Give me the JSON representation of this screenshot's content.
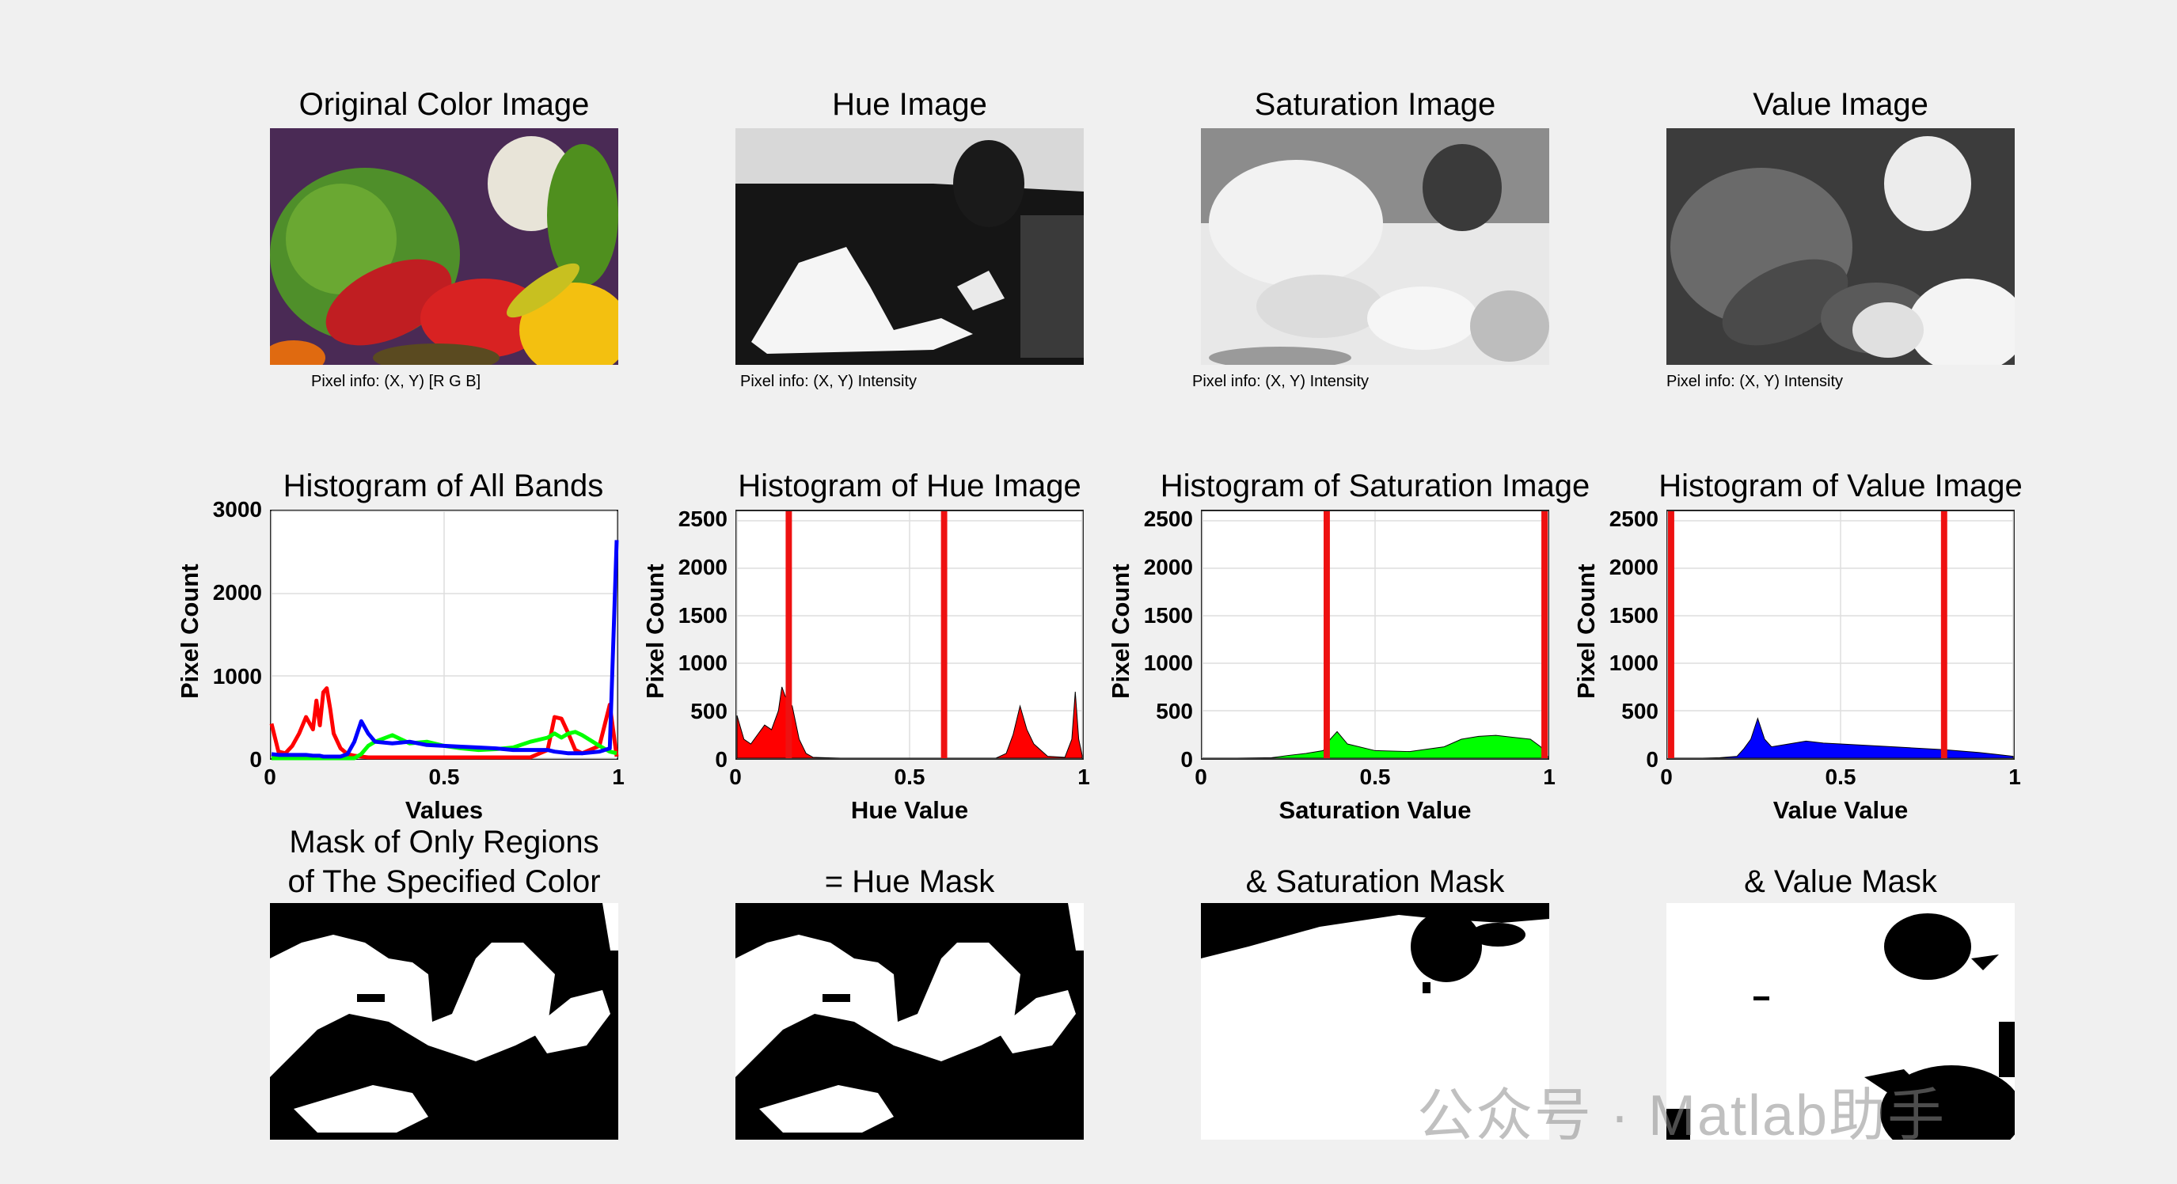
{
  "panels": {
    "original": {
      "title": "Original Color Image",
      "pixel_info": "Pixel info: (X, Y)  [R G B]"
    },
    "hue": {
      "title": "Hue Image",
      "pixel_info": "Pixel info: (X, Y)  Intensity"
    },
    "saturation": {
      "title": "Saturation Image",
      "pixel_info": "Pixel info: (X, Y)  Intensity"
    },
    "value": {
      "title": "Value Image",
      "pixel_info": "Pixel info: (X, Y)  Intensity"
    }
  },
  "masks": {
    "combined_title_line1": "Mask of Only Regions",
    "combined_title_line2": "of The Specified Color",
    "hue_title": "=   Hue Mask",
    "saturation_title": "&   Saturation Mask",
    "value_title": "&   Value Mask"
  },
  "watermark": "公众号 · Matlab助手",
  "colors": {
    "red": "#ff0000",
    "green": "#00ff00",
    "blue": "#0000ff",
    "threshold": "#ee1111"
  },
  "chart_data": [
    {
      "type": "line",
      "title": "Histogram of All Bands",
      "xlabel": "Values",
      "ylabel": "Pixel Count",
      "xlim": [
        0,
        1
      ],
      "ylim": [
        0,
        3000
      ],
      "xticks": [
        "0",
        "0.5",
        "1"
      ],
      "yticks": [
        "0",
        "1000",
        "2000",
        "3000"
      ],
      "grid": true,
      "x": [
        0,
        0.02,
        0.04,
        0.06,
        0.08,
        0.1,
        0.12,
        0.13,
        0.14,
        0.15,
        0.16,
        0.17,
        0.18,
        0.2,
        0.22,
        0.24,
        0.26,
        0.28,
        0.3,
        0.35,
        0.4,
        0.45,
        0.5,
        0.55,
        0.6,
        0.65,
        0.7,
        0.75,
        0.8,
        0.82,
        0.84,
        0.86,
        0.88,
        0.9,
        0.95,
        0.98,
        1.0
      ],
      "series": [
        {
          "name": "",
          "color": "#ff0000",
          "values": [
            420,
            80,
            60,
            150,
            300,
            500,
            350,
            700,
            400,
            800,
            850,
            600,
            300,
            120,
            50,
            30,
            20,
            10,
            10,
            10,
            10,
            10,
            10,
            10,
            10,
            10,
            10,
            10,
            100,
            500,
            480,
            300,
            100,
            60,
            150,
            650,
            20
          ]
        },
        {
          "name": "",
          "color": "#00ff00",
          "values": [
            0,
            0,
            0,
            0,
            0,
            0,
            0,
            0,
            0,
            0,
            0,
            0,
            0,
            0,
            0,
            0,
            50,
            150,
            200,
            280,
            180,
            200,
            150,
            120,
            100,
            110,
            130,
            200,
            250,
            300,
            250,
            300,
            320,
            280,
            150,
            80,
            60
          ]
        },
        {
          "name": "",
          "color": "#0000ff",
          "values": [
            50,
            40,
            40,
            40,
            40,
            40,
            30,
            30,
            30,
            20,
            20,
            20,
            20,
            20,
            50,
            200,
            450,
            300,
            200,
            180,
            200,
            160,
            150,
            140,
            130,
            120,
            100,
            100,
            100,
            80,
            70,
            60,
            60,
            60,
            80,
            120,
            2650
          ]
        }
      ]
    },
    {
      "type": "area",
      "title": "Histogram of Hue Image",
      "xlabel": "Hue Value",
      "ylabel": "Pixel Count",
      "xlim": [
        0,
        1
      ],
      "ylim": [
        0,
        2600
      ],
      "xticks": [
        "0",
        "0.5",
        "1"
      ],
      "yticks": [
        "0",
        "500",
        "1000",
        "1500",
        "2000",
        "2500"
      ],
      "grid": true,
      "color": "#ff0000",
      "thresholds": [
        0.15,
        0.6
      ],
      "x": [
        0,
        0.02,
        0.04,
        0.06,
        0.08,
        0.1,
        0.12,
        0.13,
        0.14,
        0.16,
        0.18,
        0.2,
        0.22,
        0.3,
        0.5,
        0.75,
        0.78,
        0.8,
        0.82,
        0.84,
        0.86,
        0.9,
        0.95,
        0.97,
        0.98,
        0.99,
        1.0
      ],
      "values": [
        450,
        200,
        150,
        250,
        350,
        300,
        500,
        750,
        650,
        550,
        200,
        50,
        10,
        0,
        0,
        0,
        50,
        250,
        550,
        300,
        150,
        20,
        10,
        200,
        700,
        200,
        30
      ]
    },
    {
      "type": "area",
      "title": "Histogram of Saturation Image",
      "xlabel": "Saturation Value",
      "ylabel": "Pixel Count",
      "xlim": [
        0,
        1
      ],
      "ylim": [
        0,
        2600
      ],
      "xticks": [
        "0",
        "0.5",
        "1"
      ],
      "yticks": [
        "0",
        "500",
        "1000",
        "1500",
        "2000",
        "2500"
      ],
      "grid": true,
      "color": "#00ff00",
      "thresholds": [
        0.36,
        1.0
      ],
      "x": [
        0,
        0.1,
        0.2,
        0.25,
        0.3,
        0.35,
        0.37,
        0.39,
        0.42,
        0.5,
        0.6,
        0.7,
        0.75,
        0.8,
        0.85,
        0.9,
        0.95,
        0.98,
        1.0
      ],
      "values": [
        0,
        0,
        5,
        30,
        50,
        80,
        200,
        280,
        150,
        80,
        70,
        120,
        200,
        230,
        240,
        220,
        200,
        120,
        20
      ]
    },
    {
      "type": "area",
      "title": "Histogram of Value Image",
      "xlabel": "Value Value",
      "ylabel": "Pixel Count",
      "xlim": [
        0,
        1
      ],
      "ylim": [
        0,
        2600
      ],
      "xticks": [
        "0",
        "0.5",
        "1"
      ],
      "yticks": [
        "0",
        "500",
        "1000",
        "1500",
        "2000",
        "2500"
      ],
      "grid": true,
      "color": "#0000ff",
      "thresholds": [
        0.0,
        0.8
      ],
      "x": [
        0,
        0.1,
        0.15,
        0.2,
        0.22,
        0.24,
        0.26,
        0.28,
        0.3,
        0.35,
        0.4,
        0.45,
        0.5,
        0.6,
        0.7,
        0.8,
        0.9,
        0.95,
        1.0
      ],
      "values": [
        0,
        0,
        5,
        20,
        100,
        200,
        420,
        200,
        120,
        150,
        180,
        160,
        150,
        130,
        110,
        90,
        60,
        40,
        20
      ]
    }
  ]
}
